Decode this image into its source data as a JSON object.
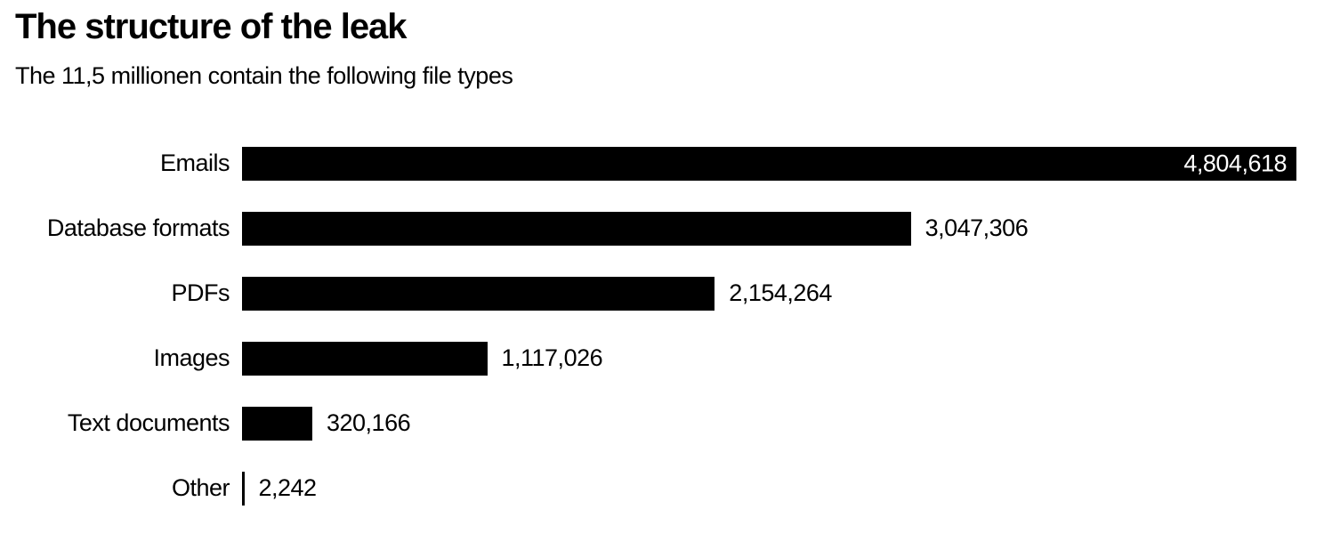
{
  "header": {
    "title": "The structure of the leak",
    "subtitle": "The 11,5 millionen contain the following file types"
  },
  "chart_data": {
    "type": "bar",
    "orientation": "horizontal",
    "title": "The structure of the leak",
    "subtitle": "The 11,5 millionen contain the following file types",
    "categories": [
      "Emails",
      "Database formats",
      "PDFs",
      "Images",
      "Text documents",
      "Other"
    ],
    "values": [
      4804618,
      3047306,
      2154264,
      1117026,
      320166,
      2242
    ],
    "value_labels": [
      "4,804,618",
      "3,047,306",
      "2,154,264",
      "1,117,026",
      "320,166",
      "2,242"
    ],
    "xlim": [
      0,
      4804618
    ],
    "bar_color": "#000000",
    "text_color": "#000000",
    "inside_value_color": "#ffffff",
    "background_color": "#ffffff",
    "grid": false,
    "legend": false,
    "value_label_position": "end-of-bar, inside bar when bar is long enough"
  }
}
